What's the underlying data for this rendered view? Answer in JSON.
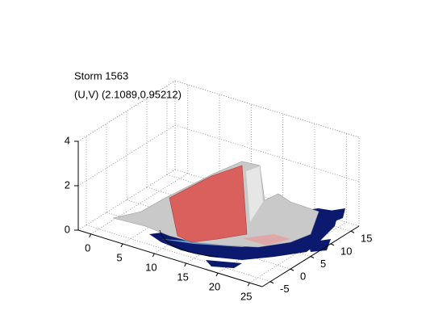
{
  "chart_data": {
    "type": "isosurface",
    "title": "Storm 1563",
    "subtitle": "(U,V) (2.1089,0.95212)",
    "xlim": [
      -2,
      27
    ],
    "xticks": [
      0,
      5,
      10,
      15,
      20,
      25
    ],
    "ylim": [
      -7,
      17
    ],
    "yticks": [
      -5,
      0,
      5,
      10,
      15
    ],
    "zlim": [
      0,
      4
    ],
    "zticks": [
      0,
      2,
      4
    ],
    "grid": true
  }
}
